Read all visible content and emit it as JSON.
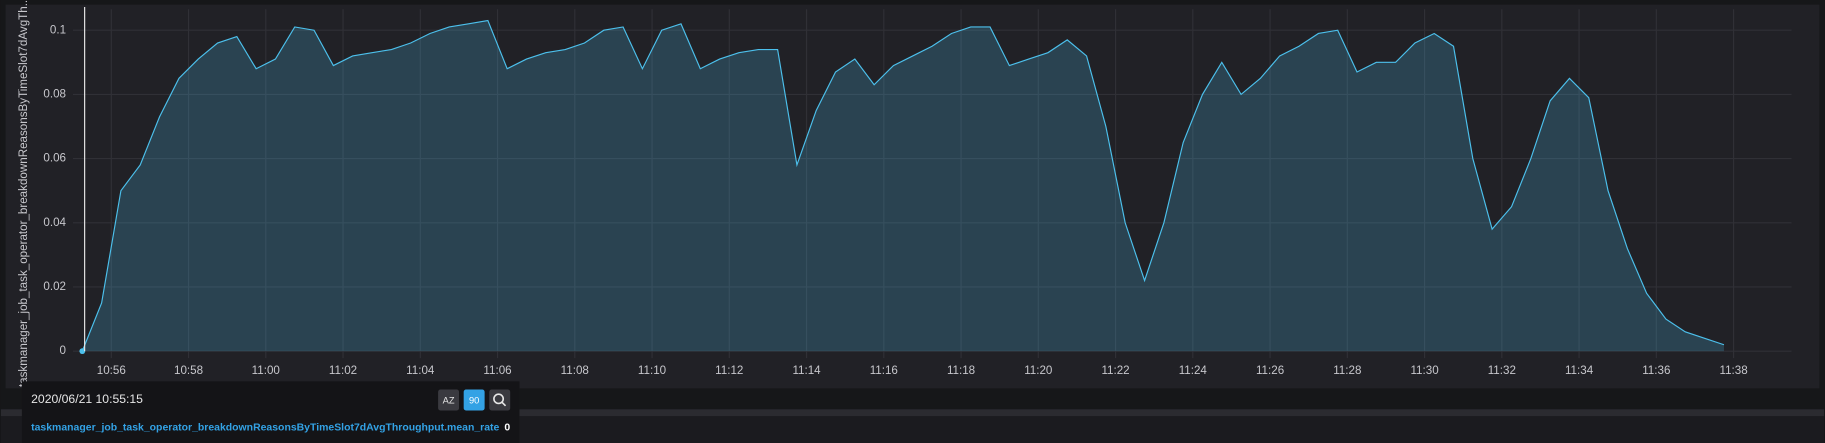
{
  "chart_data": {
    "type": "line",
    "ylabel": "taskmanager_job_task_operator_breakdownReasonsByTimeSlot7dAvgTh...",
    "x": [
      "10:55:15",
      "10:55:45",
      "10:56:15",
      "10:56:45",
      "10:57:15",
      "10:57:45",
      "10:58:15",
      "10:58:45",
      "10:59:15",
      "10:59:45",
      "11:00:15",
      "11:00:45",
      "11:01:15",
      "11:01:45",
      "11:02:15",
      "11:02:45",
      "11:03:15",
      "11:03:45",
      "11:04:15",
      "11:04:45",
      "11:05:15",
      "11:05:45",
      "11:06:15",
      "11:06:45",
      "11:07:15",
      "11:07:45",
      "11:08:15",
      "11:08:45",
      "11:09:15",
      "11:09:45",
      "11:10:15",
      "11:10:45",
      "11:11:15",
      "11:11:45",
      "11:12:15",
      "11:12:45",
      "11:13:15",
      "11:13:45",
      "11:14:15",
      "11:14:45",
      "11:15:15",
      "11:15:45",
      "11:16:15",
      "11:16:45",
      "11:17:15",
      "11:17:45",
      "11:18:15",
      "11:18:45",
      "11:19:15",
      "11:19:45",
      "11:20:15",
      "11:20:45",
      "11:21:15",
      "11:21:45",
      "11:22:15",
      "11:22:45",
      "11:23:15",
      "11:23:45",
      "11:24:15",
      "11:24:45",
      "11:25:15",
      "11:25:45",
      "11:26:15",
      "11:26:45",
      "11:27:15",
      "11:27:45",
      "11:28:15",
      "11:28:45",
      "11:29:15",
      "11:29:45",
      "11:30:15",
      "11:30:45",
      "11:31:15",
      "11:31:45",
      "11:32:15",
      "11:32:45",
      "11:33:15",
      "11:33:45",
      "11:34:15",
      "11:34:45",
      "11:35:15",
      "11:35:45",
      "11:36:15",
      "11:36:45",
      "11:37:15",
      "11:37:45"
    ],
    "series": [
      {
        "name": "taskmanager_job_task_operator_breakdownReasonsByTimeSlot7dAvgThroughput.mean_rate",
        "color": "#4cc0ec",
        "values": [
          0,
          0.015,
          0.05,
          0.058,
          0.073,
          0.085,
          0.091,
          0.096,
          0.098,
          0.088,
          0.091,
          0.101,
          0.1,
          0.089,
          0.092,
          0.093,
          0.094,
          0.096,
          0.099,
          0.101,
          0.102,
          0.103,
          0.088,
          0.091,
          0.093,
          0.094,
          0.096,
          0.1,
          0.101,
          0.088,
          0.1,
          0.102,
          0.088,
          0.091,
          0.093,
          0.094,
          0.094,
          0.058,
          0.075,
          0.087,
          0.091,
          0.083,
          0.089,
          0.092,
          0.095,
          0.099,
          0.101,
          0.101,
          0.089,
          0.091,
          0.093,
          0.097,
          0.092,
          0.07,
          0.04,
          0.022,
          0.04,
          0.065,
          0.08,
          0.09,
          0.08,
          0.085,
          0.092,
          0.095,
          0.099,
          0.1,
          0.087,
          0.09,
          0.09,
          0.096,
          0.099,
          0.095,
          0.06,
          0.038,
          0.045,
          0.06,
          0.078,
          0.085,
          0.079,
          0.05,
          0.032,
          0.018,
          0.01,
          0.006,
          0.004,
          0.002
        ]
      }
    ],
    "xlim": [
      "10:55:15",
      "11:39:30"
    ],
    "xticks": [
      "10:56",
      "10:58",
      "11:00",
      "11:02",
      "11:04",
      "11:06",
      "11:08",
      "11:10",
      "11:12",
      "11:14",
      "11:16",
      "11:18",
      "11:20",
      "11:22",
      "11:24",
      "11:26",
      "11:28",
      "11:30",
      "11:32",
      "11:34",
      "11:36",
      "11:38"
    ],
    "ylim": [
      0,
      0.1
    ],
    "yticks": [
      0,
      0.02,
      0.04,
      0.06,
      0.08,
      0.1
    ],
    "grid": true
  },
  "tooltip": {
    "time": "2020/06/21 10:55:15",
    "buttons": [
      "AZ",
      "90"
    ],
    "series_name": "taskmanager_job_task_operator_breakdownReasonsByTimeSlot7dAvgThroughput.mean_rate",
    "value": 0
  }
}
